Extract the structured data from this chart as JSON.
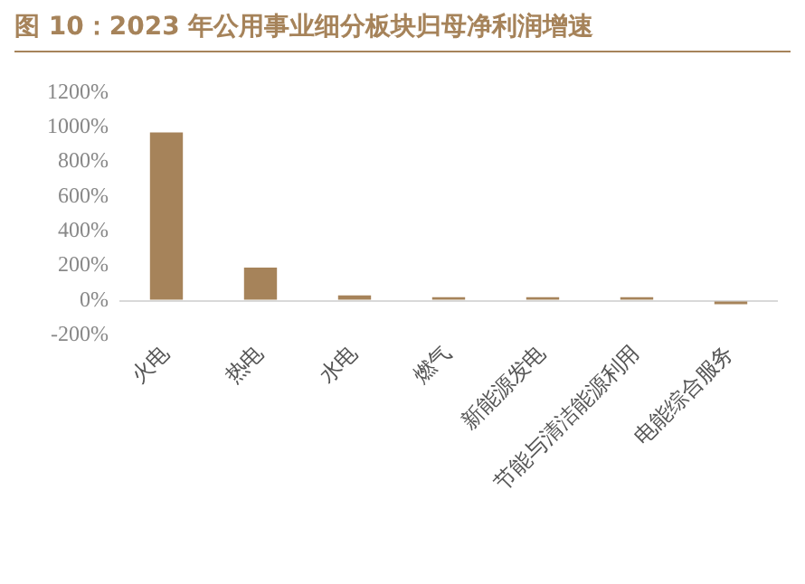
{
  "chart_data": {
    "type": "bar",
    "title": "图 10：2023 年公用事业细分板块归母净利润增速",
    "categories": [
      "火电",
      "热电",
      "水电",
      "燃气",
      "新能源发电",
      "节能与清洁能源利用",
      "电能综合服务"
    ],
    "values": [
      970,
      190,
      30,
      20,
      20,
      20,
      -20
    ],
    "color": "#a6835a",
    "ylim": [
      -200,
      1200
    ],
    "yticks": [
      {
        "value": -200,
        "label": "-200%"
      },
      {
        "value": 0,
        "label": "0%"
      },
      {
        "value": 200,
        "label": "200%"
      },
      {
        "value": 400,
        "label": "400%"
      },
      {
        "value": 600,
        "label": "600%"
      },
      {
        "value": 800,
        "label": "800%"
      },
      {
        "value": 1000,
        "label": "1000%"
      },
      {
        "value": 1200,
        "label": "1200%"
      }
    ],
    "grid": false,
    "legend": false
  }
}
